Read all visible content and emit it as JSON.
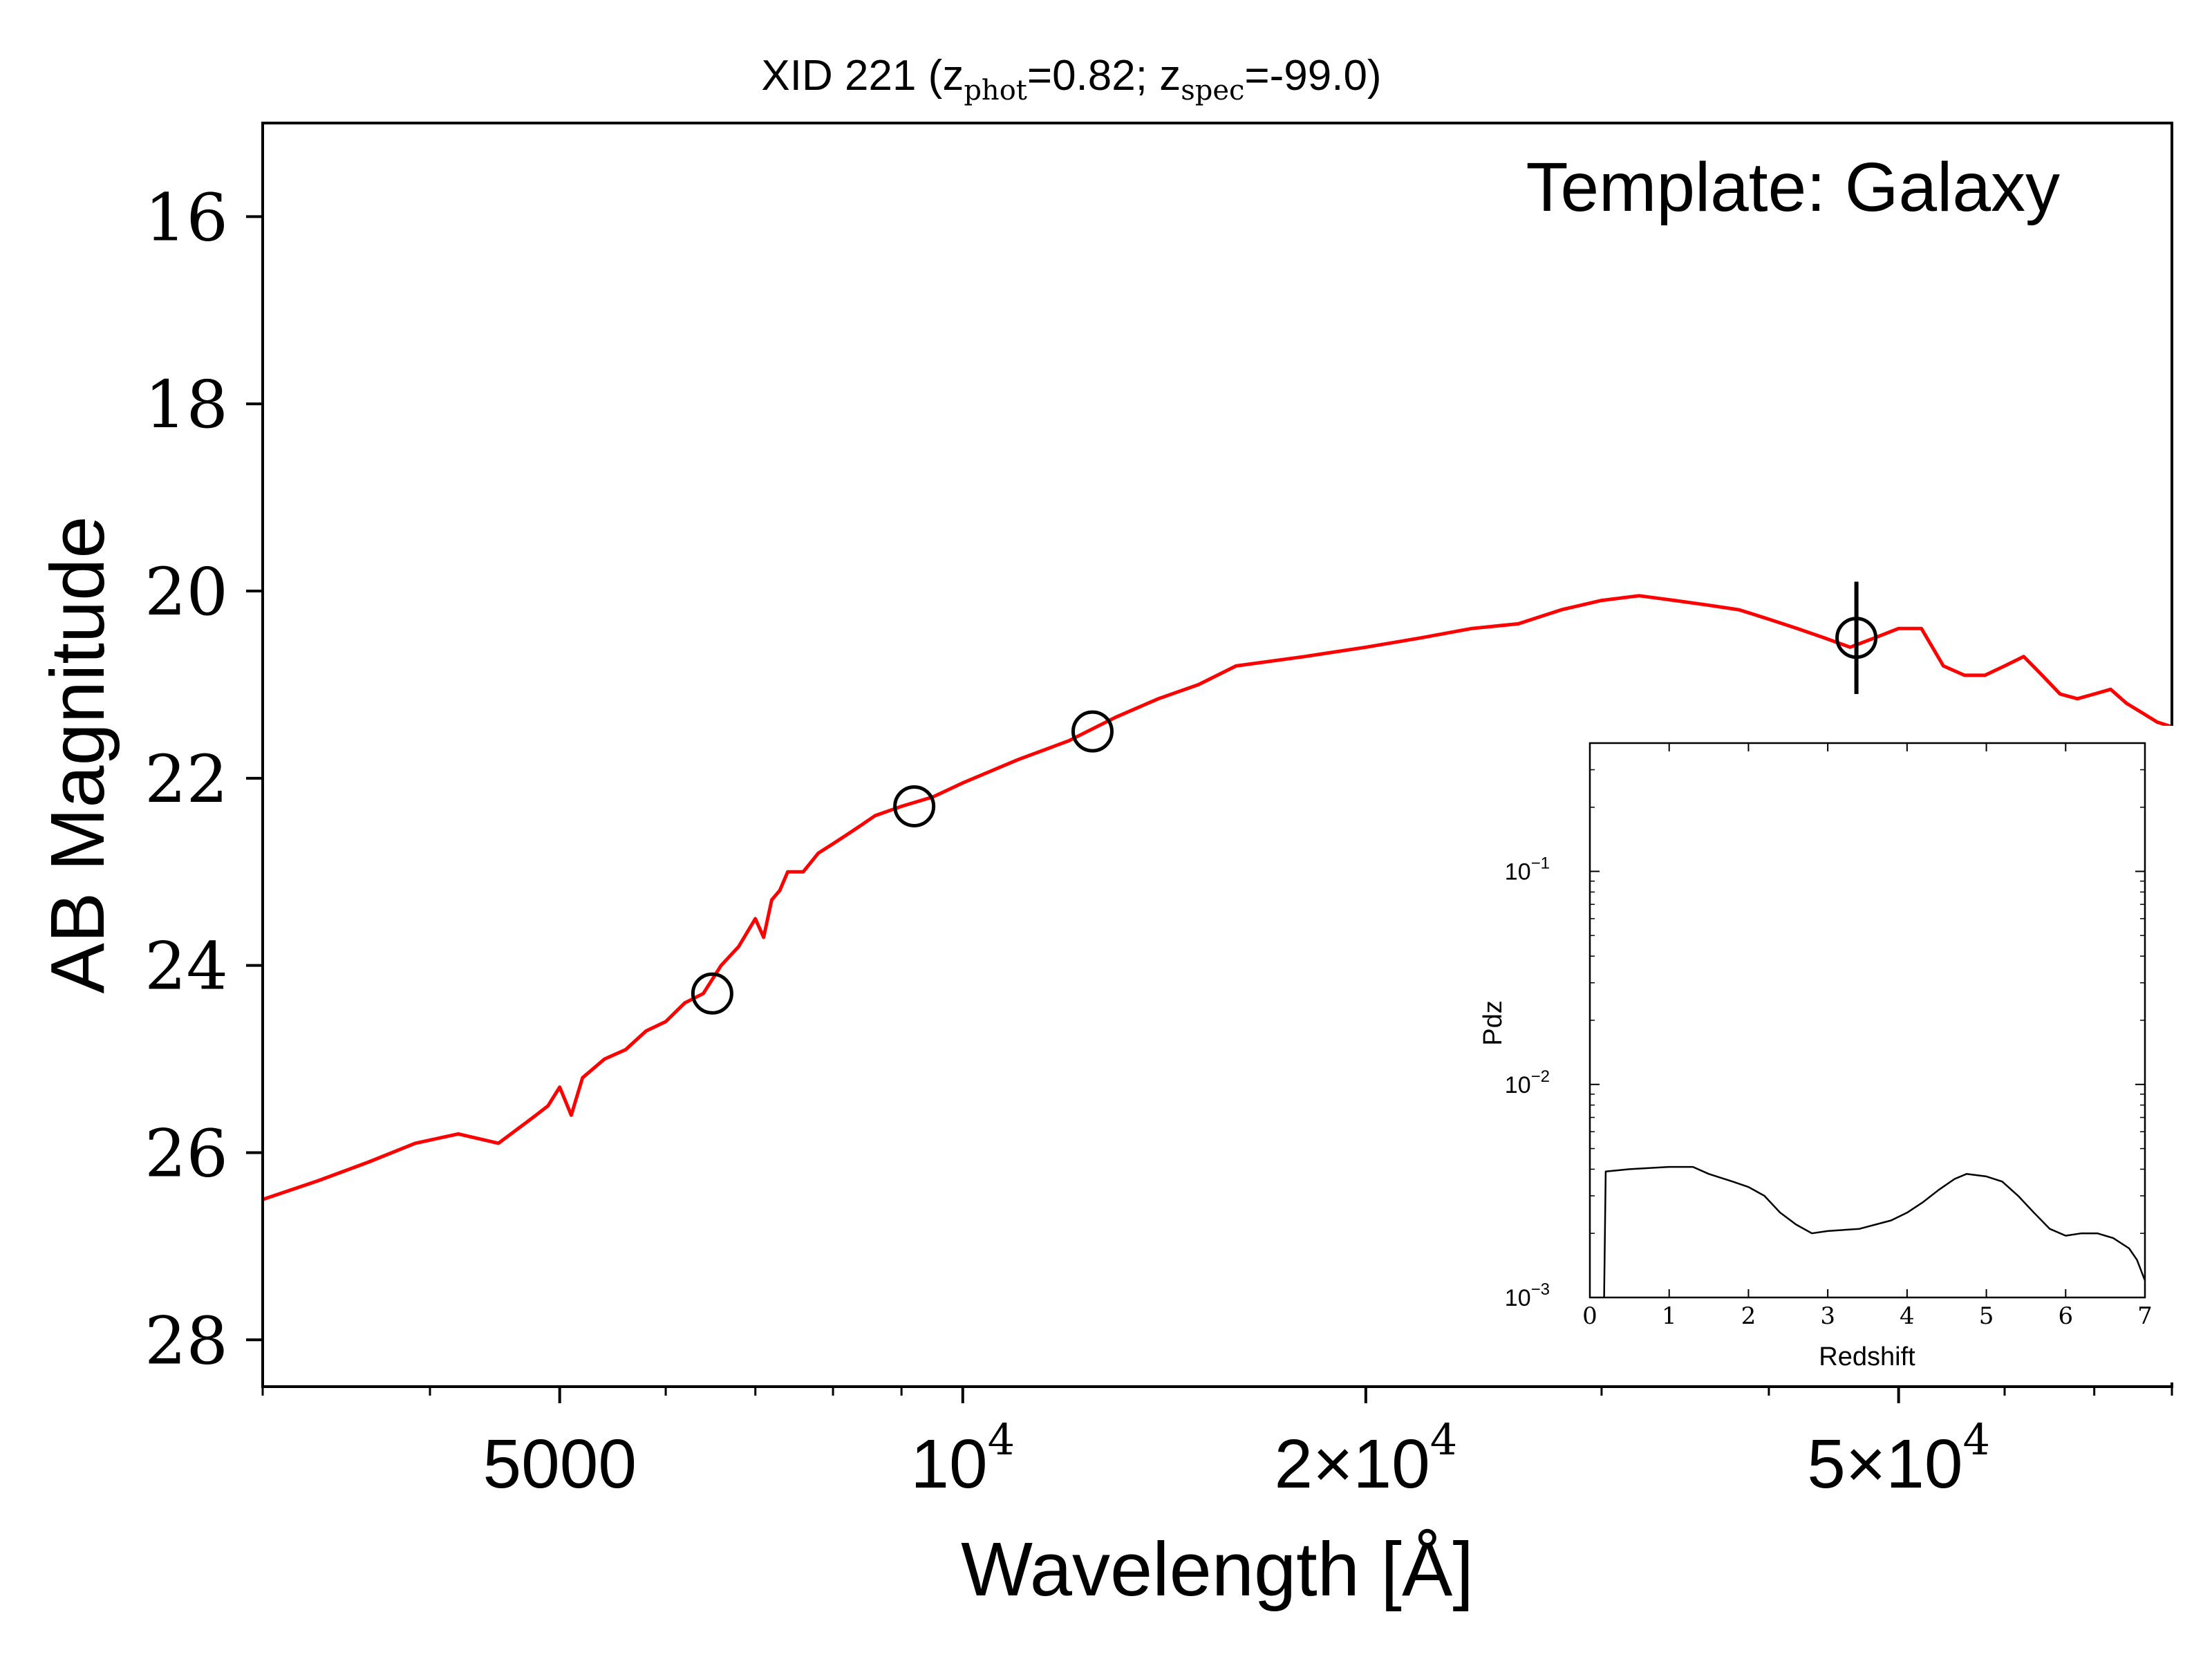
{
  "chart_data": [
    {
      "type": "scatter",
      "title": {
        "prefix": "XID 221 (z",
        "sub1": "phot",
        "mid": "=0.82; z",
        "sub2": "spec",
        "suffix": "=-99.0)"
      },
      "annotation": "Template: Galaxy",
      "xlabel": "Wavelength [Å]",
      "ylabel": "AB Magnitude",
      "xscale": "log",
      "xlim": [
        3000,
        80000
      ],
      "ylim": [
        28.5,
        15
      ],
      "y_inverted": true,
      "yticks": [
        "16",
        "18",
        "20",
        "22",
        "24",
        "26",
        "28"
      ],
      "xticks": [
        {
          "value": 5000,
          "mant": "5000",
          "exp": ""
        },
        {
          "value": 10000,
          "mant": "10",
          "exp": "4"
        },
        {
          "value": 20000,
          "mant": "2×10",
          "exp": "4"
        },
        {
          "value": 50000,
          "mant": "5×10",
          "exp": "4"
        }
      ],
      "grid": false,
      "colors": {
        "template": "#ff0000",
        "points": "#000000"
      },
      "series": [
        {
          "type": "line",
          "x": [
            3000,
            3300,
            3600,
            3900,
            4200,
            4500,
            4800,
            4900,
            5000,
            5100,
            5200,
            5400,
            5600,
            5800,
            6000,
            6200,
            6400,
            6600,
            6800,
            7000,
            7100,
            7200,
            7300,
            7400,
            7600,
            7800,
            8000,
            8200,
            8400,
            8600,
            8800,
            9000,
            9500,
            10000,
            11000,
            12000,
            13000,
            14000,
            15000,
            16000,
            18000,
            20000,
            22000,
            24000,
            26000,
            28000,
            30000,
            32000,
            34000,
            36000,
            38000,
            40000,
            42000,
            44000,
            46000,
            48000,
            50000,
            52000,
            54000,
            56000,
            58000,
            60000,
            62000,
            64000,
            66000,
            68000,
            70000,
            72000,
            74000,
            76000,
            78000,
            80000
          ],
          "y": [
            26.5,
            26.3,
            26.1,
            25.9,
            25.8,
            25.9,
            25.6,
            25.5,
            25.3,
            25.6,
            25.2,
            25.0,
            24.9,
            24.7,
            24.6,
            24.4,
            24.3,
            24.0,
            23.8,
            23.5,
            23.7,
            23.3,
            23.2,
            23.0,
            23.0,
            22.8,
            22.7,
            22.6,
            22.5,
            22.4,
            22.35,
            22.3,
            22.2,
            22.05,
            21.8,
            21.6,
            21.35,
            21.15,
            21.0,
            20.8,
            20.7,
            20.6,
            20.5,
            20.4,
            20.35,
            20.2,
            20.1,
            20.05,
            20.1,
            20.15,
            20.2,
            20.3,
            20.4,
            20.5,
            20.6,
            20.5,
            20.4,
            20.4,
            20.8,
            20.9,
            20.9,
            20.8,
            20.7,
            20.9,
            21.1,
            21.15,
            21.1,
            21.05,
            21.2,
            21.3,
            21.4,
            21.45
          ]
        },
        {
          "type": "scatter",
          "x": [
            6500,
            9200,
            12500,
            46500
          ],
          "y": [
            24.3,
            22.3,
            21.5,
            20.5
          ],
          "yerr": [
            0.0,
            0.0,
            0.0,
            0.6
          ]
        }
      ]
    },
    {
      "type": "line",
      "xlabel": "Redshift",
      "ylabel": "Pdz",
      "yscale": "log",
      "xlim": [
        0,
        7
      ],
      "ylim": [
        0.001,
        0.4
      ],
      "xticks": [
        "0",
        "1",
        "2",
        "3",
        "4",
        "5",
        "6",
        "7"
      ],
      "yticks": [
        {
          "value": 0.1,
          "mant": "10",
          "exp": "−1"
        },
        {
          "value": 0.01,
          "mant": "10",
          "exp": "−2"
        },
        {
          "value": 0.001,
          "mant": "10",
          "exp": "−3"
        }
      ],
      "grid": false,
      "colors": {
        "line": "#000000"
      },
      "series": [
        {
          "x": [
            0.18,
            0.2,
            0.5,
            1.0,
            1.3,
            1.5,
            1.8,
            2.0,
            2.2,
            2.4,
            2.6,
            2.8,
            3.0,
            3.4,
            3.8,
            4.0,
            4.2,
            4.4,
            4.6,
            4.75,
            5.0,
            5.2,
            5.4,
            5.6,
            5.8,
            6.0,
            6.2,
            6.4,
            6.6,
            6.8,
            6.9,
            7.0
          ],
          "y": [
            0.001,
            0.0039,
            0.004,
            0.0041,
            0.0041,
            0.0038,
            0.0035,
            0.0033,
            0.003,
            0.0025,
            0.0022,
            0.002,
            0.00205,
            0.0021,
            0.0023,
            0.0025,
            0.0028,
            0.0032,
            0.0036,
            0.0038,
            0.0037,
            0.0035,
            0.003,
            0.0025,
            0.0021,
            0.00195,
            0.002,
            0.002,
            0.0019,
            0.0017,
            0.0015,
            0.0012
          ]
        }
      ]
    }
  ]
}
